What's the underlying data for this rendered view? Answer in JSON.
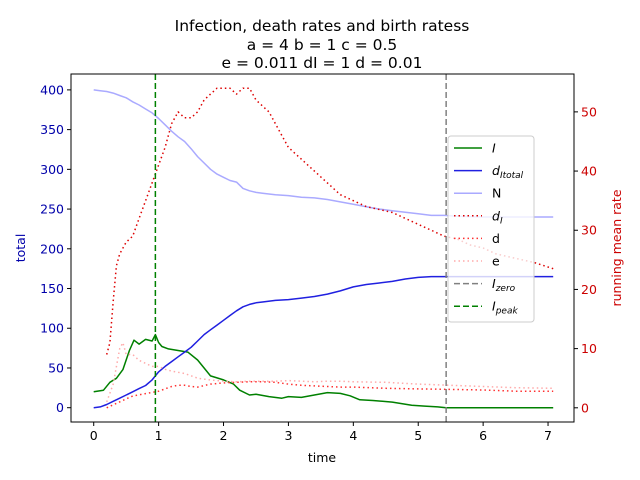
{
  "chart_data": {
    "type": "line",
    "title_lines": [
      "Infection, death rates and birth ratess",
      "a = 4   b = 1   c = 0.5",
      "e = 0.011   dI = 1   d = 0.01"
    ],
    "xlabel": "time",
    "ylabel_left": "total",
    "ylabel_right": "running mean rate",
    "xlim": [
      -0.35,
      7.4
    ],
    "ylim_left": [
      -18,
      420
    ],
    "ylim_right": [
      -2.4,
      56.4
    ],
    "x_ticks": [
      0,
      1,
      2,
      3,
      4,
      5,
      6,
      7
    ],
    "y_left_ticks": [
      0,
      50,
      100,
      150,
      200,
      250,
      300,
      350,
      400
    ],
    "y_right_ticks": [
      0,
      10,
      20,
      30,
      40,
      50
    ],
    "grid": false,
    "legend_position": "center-right",
    "vlines": [
      {
        "name": "I_zero",
        "x": 5.43,
        "color": "#808080",
        "style": "dashed"
      },
      {
        "name": "I_peak",
        "x": 0.95,
        "color": "#008000",
        "style": "dashed"
      }
    ],
    "series": [
      {
        "name": "I",
        "legend_main": "I",
        "legend_sub": "",
        "axis": "left",
        "color": "#008000",
        "style": "solid",
        "x": [
          0,
          0.15,
          0.25,
          0.35,
          0.45,
          0.55,
          0.62,
          0.7,
          0.8,
          0.9,
          0.95,
          1.0,
          1.05,
          1.15,
          1.3,
          1.45,
          1.6,
          1.7,
          1.8,
          2.0,
          2.15,
          2.25,
          2.4,
          2.5,
          2.7,
          2.9,
          3.0,
          3.2,
          3.4,
          3.6,
          3.8,
          3.95,
          4.1,
          4.3,
          4.6,
          4.9,
          5.1,
          5.3,
          5.43,
          6.0,
          7.08
        ],
        "y": [
          20,
          22,
          32,
          37,
          48,
          72,
          85,
          80,
          86,
          84,
          92,
          82,
          77,
          74,
          72,
          70,
          60,
          50,
          40,
          35,
          30,
          22,
          16,
          17,
          14,
          12,
          14,
          13,
          16,
          19,
          18,
          15,
          10,
          9,
          7,
          3,
          2,
          1,
          0,
          0,
          0
        ]
      },
      {
        "name": "dI_total",
        "legend_main": "d",
        "legend_sub": "Itotal",
        "axis": "left",
        "color": "#2020e0",
        "style": "solid",
        "x": [
          0,
          0.1,
          0.2,
          0.3,
          0.4,
          0.5,
          0.6,
          0.7,
          0.8,
          0.9,
          1.0,
          1.1,
          1.2,
          1.3,
          1.4,
          1.5,
          1.6,
          1.7,
          1.8,
          1.9,
          2.0,
          2.1,
          2.2,
          2.3,
          2.4,
          2.5,
          2.6,
          2.8,
          3.0,
          3.2,
          3.4,
          3.6,
          3.8,
          4.0,
          4.2,
          4.4,
          4.6,
          4.8,
          5.0,
          5.2,
          5.4,
          5.6,
          6.0,
          6.5,
          7.08
        ],
        "y": [
          0,
          1,
          4,
          8,
          12,
          16,
          20,
          24,
          28,
          35,
          45,
          52,
          58,
          64,
          70,
          76,
          84,
          92,
          98,
          104,
          110,
          116,
          122,
          127,
          130,
          132,
          133,
          135,
          136,
          138,
          140,
          143,
          147,
          152,
          155,
          157,
          159,
          162,
          164,
          165,
          165,
          165,
          165,
          165,
          165
        ]
      },
      {
        "name": "N",
        "legend_main": "N",
        "legend_sub": "",
        "axis": "left",
        "color": "#aaaaff",
        "style": "solid",
        "x": [
          0,
          0.1,
          0.2,
          0.3,
          0.4,
          0.5,
          0.6,
          0.7,
          0.8,
          0.9,
          1.0,
          1.1,
          1.2,
          1.3,
          1.4,
          1.5,
          1.6,
          1.7,
          1.8,
          1.9,
          2.0,
          2.1,
          2.2,
          2.3,
          2.4,
          2.5,
          2.6,
          2.8,
          3.0,
          3.2,
          3.4,
          3.6,
          3.8,
          4.0,
          4.2,
          4.4,
          4.6,
          4.8,
          5.0,
          5.2,
          5.4,
          5.6,
          6.0,
          6.5,
          7.08
        ],
        "y": [
          400,
          399,
          398,
          396,
          393,
          390,
          385,
          381,
          376,
          371,
          364,
          356,
          348,
          341,
          335,
          326,
          316,
          308,
          300,
          294,
          290,
          286,
          284,
          276,
          273,
          271,
          270,
          268,
          267,
          265,
          264,
          262,
          259,
          256,
          253,
          250,
          248,
          246,
          244,
          242,
          242,
          241,
          240,
          240,
          240
        ]
      },
      {
        "name": "dI",
        "legend_main": "d",
        "legend_sub": "I",
        "axis": "right",
        "color": "#dd0000",
        "style": "dotted",
        "x": [
          0.2,
          0.25,
          0.3,
          0.35,
          0.4,
          0.5,
          0.6,
          0.7,
          0.8,
          0.9,
          1.0,
          1.1,
          1.2,
          1.3,
          1.4,
          1.5,
          1.6,
          1.7,
          1.8,
          1.9,
          2.0,
          2.1,
          2.2,
          2.3,
          2.4,
          2.5,
          2.6,
          2.7,
          2.8,
          2.9,
          3.0,
          3.2,
          3.4,
          3.6,
          3.8,
          4.0,
          4.2,
          4.4,
          4.6,
          4.8,
          5.0,
          5.2,
          5.4,
          5.6,
          5.8,
          6.0,
          6.2,
          6.4,
          6.6,
          6.8,
          7.08
        ],
        "y": [
          9,
          11,
          18,
          24,
          26,
          28,
          29,
          32,
          35,
          38,
          41,
          44,
          48,
          50,
          49,
          49,
          50,
          52,
          53,
          54,
          54,
          54,
          53,
          54,
          54,
          52,
          51,
          50,
          48,
          46,
          44,
          42,
          40,
          38,
          36,
          35,
          34,
          33.5,
          33,
          32,
          31,
          30,
          29,
          28.5,
          27.5,
          27,
          26,
          25.5,
          25,
          24.5,
          23.5
        ]
      },
      {
        "name": "d",
        "legend_main": "d",
        "legend_sub": "",
        "axis": "right",
        "color": "#ff3030",
        "style": "dotted",
        "x": [
          0.2,
          0.3,
          0.4,
          0.5,
          0.6,
          0.7,
          0.8,
          0.9,
          1.0,
          1.1,
          1.2,
          1.3,
          1.4,
          1.5,
          1.6,
          1.8,
          2.0,
          2.2,
          2.4,
          2.6,
          2.8,
          3.0,
          3.2,
          3.4,
          3.6,
          3.8,
          4.0,
          4.5,
          5.0,
          5.5,
          6.0,
          6.5,
          7.08
        ],
        "y": [
          0,
          0.5,
          1,
          1.5,
          2,
          2.2,
          2.4,
          2.6,
          2.8,
          3.2,
          3.6,
          3.8,
          3.8,
          3.6,
          3.5,
          4,
          4.2,
          4.3,
          4.4,
          4.4,
          4.3,
          4,
          3.8,
          3.7,
          3.6,
          3.5,
          3.5,
          3.3,
          3.2,
          3.1,
          3,
          2.8,
          2.8
        ]
      },
      {
        "name": "e",
        "legend_main": "e",
        "legend_sub": "",
        "axis": "right",
        "color": "#ffaaaa",
        "style": "dotted",
        "x": [
          0.2,
          0.3,
          0.4,
          0.45,
          0.5,
          0.6,
          0.7,
          0.8,
          0.9,
          1.0,
          1.1,
          1.2,
          1.3,
          1.4,
          1.5,
          1.6,
          1.8,
          2.0,
          2.2,
          2.4,
          2.6,
          2.8,
          3.0,
          3.2,
          3.4,
          3.6,
          3.8,
          4.0,
          4.5,
          5.0,
          5.5,
          6.0,
          6.5,
          7.08
        ],
        "y": [
          1,
          4,
          10,
          11,
          9,
          9,
          8,
          7.5,
          7,
          7,
          6.5,
          6.2,
          6,
          5.8,
          5.4,
          5,
          4.7,
          4.5,
          4.4,
          4.5,
          4.5,
          4.5,
          4.6,
          4.5,
          4.4,
          4.5,
          4.5,
          4.4,
          4.3,
          4,
          3.8,
          3.6,
          3.4,
          3.3
        ]
      }
    ],
    "legend_extra": [
      {
        "name": "I_zero",
        "legend_main": "I",
        "legend_sub": "zero",
        "color": "#808080",
        "style": "dashed"
      },
      {
        "name": "I_peak",
        "legend_main": "I",
        "legend_sub": "peak",
        "color": "#008000",
        "style": "dashed"
      }
    ]
  }
}
